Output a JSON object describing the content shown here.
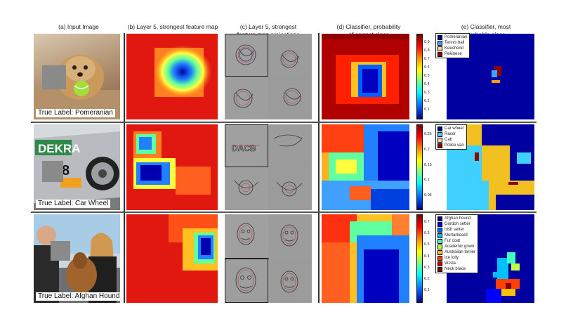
{
  "headers": {
    "a": "(a) Input Image",
    "b": "(b) Layer 5, strongest feature map",
    "c_line1": "(c) Layer 5, strongest",
    "c_line2": "feature map projections",
    "d_line1": "(d) Classifier, probability",
    "d_line2": "of correct class",
    "e_line1": "(e) Classifier, most",
    "e_line2": "probable class"
  },
  "rows": [
    {
      "true_label": "True Label: Pomeranian",
      "colorbar_ticks": [
        "0.9",
        "0.8",
        "0.7",
        "0.6",
        "0.5",
        "0.4",
        "0.3",
        "0.2",
        "0.1"
      ],
      "legend": [
        {
          "label": "Pomeranian",
          "color": "#00008f"
        },
        {
          "label": "Tennis ball",
          "color": "#3fa0ff"
        },
        {
          "label": "Keeshond",
          "color": "#ffd0a0"
        },
        {
          "label": "Pekinese",
          "color": "#8f0000"
        }
      ]
    },
    {
      "true_label": "True Label: Car Wheel",
      "colorbar_ticks": [
        "0.25",
        "0.2",
        "0.15",
        "0.1",
        "0.05"
      ],
      "legend": [
        {
          "label": "Car wheel",
          "color": "#00008f"
        },
        {
          "label": "Racer",
          "color": "#3fd0ff"
        },
        {
          "label": "Cab",
          "color": "#ffd0a0"
        },
        {
          "label": "Police van",
          "color": "#8f0000"
        }
      ]
    },
    {
      "true_label": "True Label: Afghan Hound",
      "colorbar_ticks": [
        "0.7",
        "0.6",
        "0.5",
        "0.4",
        "0.3",
        "0.2",
        "0.1"
      ],
      "legend": [
        {
          "label": "Afghan hound",
          "color": "#00008f"
        },
        {
          "label": "Gordon setter",
          "color": "#0000ff"
        },
        {
          "label": "Irish setter",
          "color": "#0060ff"
        },
        {
          "label": "Mortarboard",
          "color": "#00c0ff"
        },
        {
          "label": "Fur coat",
          "color": "#40ffc0"
        },
        {
          "label": "Academic gown",
          "color": "#c0ff40"
        },
        {
          "label": "Australian terrier",
          "color": "#ffc000"
        },
        {
          "label": "Ice lolly",
          "color": "#ff4000"
        },
        {
          "label": "Vizsla",
          "color": "#c00000"
        },
        {
          "label": "Neck brace",
          "color": "#800000"
        }
      ]
    }
  ],
  "projection_text": {
    "dekra": "DEKRA",
    "number": "8",
    "dac": "DACB"
  }
}
